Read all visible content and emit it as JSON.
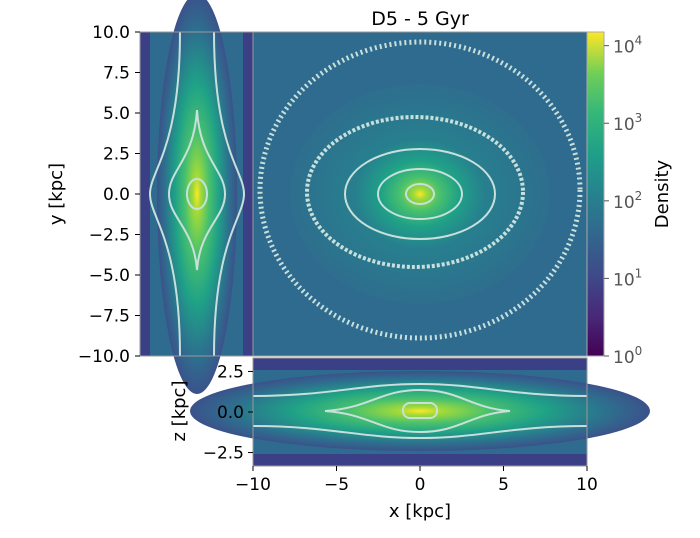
{
  "chart_data": {
    "type": "heatmap",
    "title": "D5 - 5 Gyr",
    "panels": [
      {
        "name": "face-on",
        "xlabel": "",
        "ylabel": "y [kpc]",
        "xlim": [
          -10,
          10
        ],
        "ylim": [
          -10,
          10
        ],
        "yticks": [
          "10.0",
          "7.5",
          "5.0",
          "2.5",
          "0.0",
          "−2.5",
          "−5.0",
          "−7.5",
          "−10.0"
        ]
      },
      {
        "name": "edge-on-xz",
        "xlabel": "x [kpc]",
        "ylabel": "z [kpc]",
        "xlim": [
          -10,
          10
        ],
        "ylim": [
          -3.33,
          3.33
        ],
        "xticks": [
          "−10",
          "−5",
          "0",
          "5",
          "10"
        ],
        "yticks": [
          "2.5",
          "0.0",
          "−2.5"
        ]
      },
      {
        "name": "edge-on-zy",
        "xlabel": "",
        "ylabel": "",
        "ylim": [
          -10,
          10
        ]
      }
    ],
    "colorbar": {
      "label": "Density",
      "scale": "log",
      "range": [
        1,
        15000
      ],
      "colormap": "viridis",
      "ticks": [
        {
          "base": "10",
          "exp": "4"
        },
        {
          "base": "10",
          "exp": "3"
        },
        {
          "base": "10",
          "exp": "2"
        },
        {
          "base": "10",
          "exp": "1"
        },
        {
          "base": "10",
          "exp": "0"
        }
      ]
    },
    "contour_color": "#c8e0dc"
  }
}
